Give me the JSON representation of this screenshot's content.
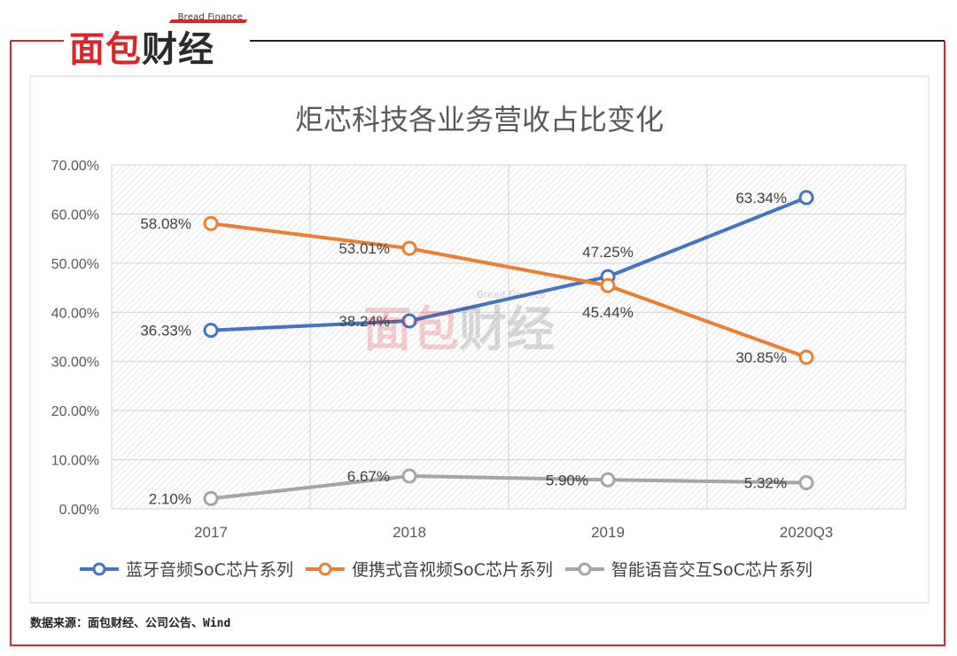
{
  "brand": {
    "name_part1": "面包",
    "name_part2": "财经",
    "sub": "Bread Finance"
  },
  "source_note": "数据来源：面包财经、公司公告、Wind",
  "chart_data": {
    "type": "line",
    "title": "炬芯科技各业务营收占比变化",
    "categories": [
      "2017",
      "2018",
      "2019",
      "2020Q3"
    ],
    "y_ticks": [
      "0.00%",
      "10.00%",
      "20.00%",
      "30.00%",
      "40.00%",
      "50.00%",
      "60.00%",
      "70.00%"
    ],
    "ylim": [
      0,
      70
    ],
    "series": [
      {
        "name": "蓝牙音频SoC芯片系列",
        "color": "#4472c4",
        "values": [
          36.33,
          38.24,
          47.25,
          63.34
        ],
        "labels": [
          "36.33%",
          "38.24%",
          "47.25%",
          "63.34%"
        ]
      },
      {
        "name": "便携式音视频SoC芯片系列",
        "color": "#ed7d31",
        "values": [
          58.08,
          53.01,
          45.44,
          30.85
        ],
        "labels": [
          "58.08%",
          "53.01%",
          "45.44%",
          "30.85%"
        ]
      },
      {
        "name": "智能语音交互SoC芯片系列",
        "color": "#a5a5a5",
        "values": [
          2.1,
          6.67,
          5.9,
          5.32
        ],
        "labels": [
          "2.10%",
          "6.67%",
          "5.90%",
          "5.32%"
        ]
      }
    ]
  }
}
